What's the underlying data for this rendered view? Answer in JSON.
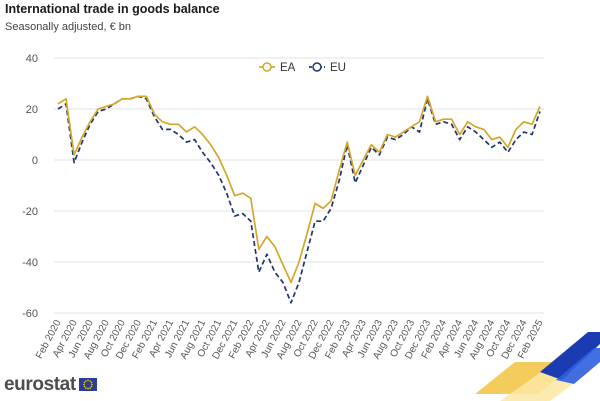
{
  "header": {
    "title": "International trade in goods balance",
    "subtitle": "Seasonally adjusted, € bn"
  },
  "brand": {
    "name": "eurostat",
    "logo_icon": "eu-flag-icon"
  },
  "colors": {
    "EA": "#d4a72a",
    "EU": "#1f3572",
    "grid": "#e3e3e3",
    "axis_text": "#555555"
  },
  "chart_data": {
    "type": "line",
    "title": "International trade in goods balance",
    "subtitle": "Seasonally adjusted, € bn",
    "xlabel": "",
    "ylabel": "",
    "ylim": [
      -60,
      40
    ],
    "yticks": [
      -60,
      -40,
      -20,
      0,
      20,
      40
    ],
    "grid": true,
    "legend_position": "top-center",
    "x": [
      "Feb 2020",
      "Mar 2020",
      "Apr 2020",
      "May 2020",
      "Jun 2020",
      "Jul 2020",
      "Aug 2020",
      "Sep 2020",
      "Oct 2020",
      "Nov 2020",
      "Dec 2020",
      "Jan 2021",
      "Feb 2021",
      "Mar 2021",
      "Apr 2021",
      "May 2021",
      "Jun 2021",
      "Jul 2021",
      "Aug 2021",
      "Sep 2021",
      "Oct 2021",
      "Nov 2021",
      "Dec 2021",
      "Jan 2022",
      "Feb 2022",
      "Mar 2022",
      "Apr 2022",
      "May 2022",
      "Jun 2022",
      "Jul 2022",
      "Aug 2022",
      "Sep 2022",
      "Oct 2022",
      "Nov 2022",
      "Dec 2022",
      "Jan 2023",
      "Feb 2023",
      "Mar 2023",
      "Apr 2023",
      "May 2023",
      "Jun 2023",
      "Jul 2023",
      "Aug 2023",
      "Sep 2023",
      "Oct 2023",
      "Nov 2023",
      "Dec 2023",
      "Jan 2024",
      "Feb 2024",
      "Mar 2024",
      "Apr 2024",
      "May 2024",
      "Jun 2024",
      "Jul 2024",
      "Aug 2024",
      "Sep 2024",
      "Oct 2024",
      "Nov 2024",
      "Dec 2024",
      "Jan 2025",
      "Feb 2025"
    ],
    "tick_labels": [
      "Feb 2020",
      "Apr 2020",
      "Jun 2020",
      "Aug 2020",
      "Oct 2020",
      "Dec 2020",
      "Feb 2021",
      "Apr 2021",
      "Jun 2021",
      "Aug 2021",
      "Oct 2021",
      "Dec 2021",
      "Feb 2022",
      "Apr 2022",
      "Jun 2022",
      "Aug 2022",
      "Oct 2022",
      "Dec 2022",
      "Feb 2023",
      "Apr 2023",
      "Jun 2023",
      "Aug 2023",
      "Oct 2023",
      "Dec 2023",
      "Feb 2024",
      "Apr 2024",
      "Jun 2024",
      "Aug 2024",
      "Oct 2024",
      "Dec 2024",
      "Feb 2025"
    ],
    "series": [
      {
        "name": "EA",
        "style": "solid",
        "values": [
          22,
          24,
          2,
          9,
          15,
          20,
          21,
          22,
          24,
          24,
          25,
          25,
          18,
          15,
          14,
          14,
          11,
          13,
          10,
          6,
          1,
          -6,
          -14,
          -13,
          -15,
          -35,
          -30,
          -34,
          -41,
          -48,
          -40,
          -29,
          -17,
          -19,
          -16,
          -4,
          7,
          -6,
          0,
          6,
          3,
          10,
          9,
          11,
          13,
          15,
          25,
          15,
          16,
          16,
          10,
          15,
          13,
          12,
          8,
          9,
          5,
          12,
          15,
          14,
          21
        ]
      },
      {
        "name": "EU",
        "style": "dashed",
        "values": [
          20,
          22,
          -1,
          7,
          14,
          19,
          20,
          22,
          24,
          24,
          25,
          24,
          17,
          12,
          12,
          10,
          7,
          8,
          3,
          -1,
          -6,
          -13,
          -22,
          -21,
          -24,
          -44,
          -37,
          -44,
          -48,
          -56,
          -48,
          -36,
          -24,
          -24,
          -19,
          -8,
          6,
          -9,
          -2,
          5,
          2,
          9,
          8,
          10,
          13,
          11,
          24,
          14,
          15,
          14,
          8,
          13,
          11,
          8,
          5,
          7,
          3,
          8,
          11,
          10,
          19
        ]
      }
    ]
  }
}
